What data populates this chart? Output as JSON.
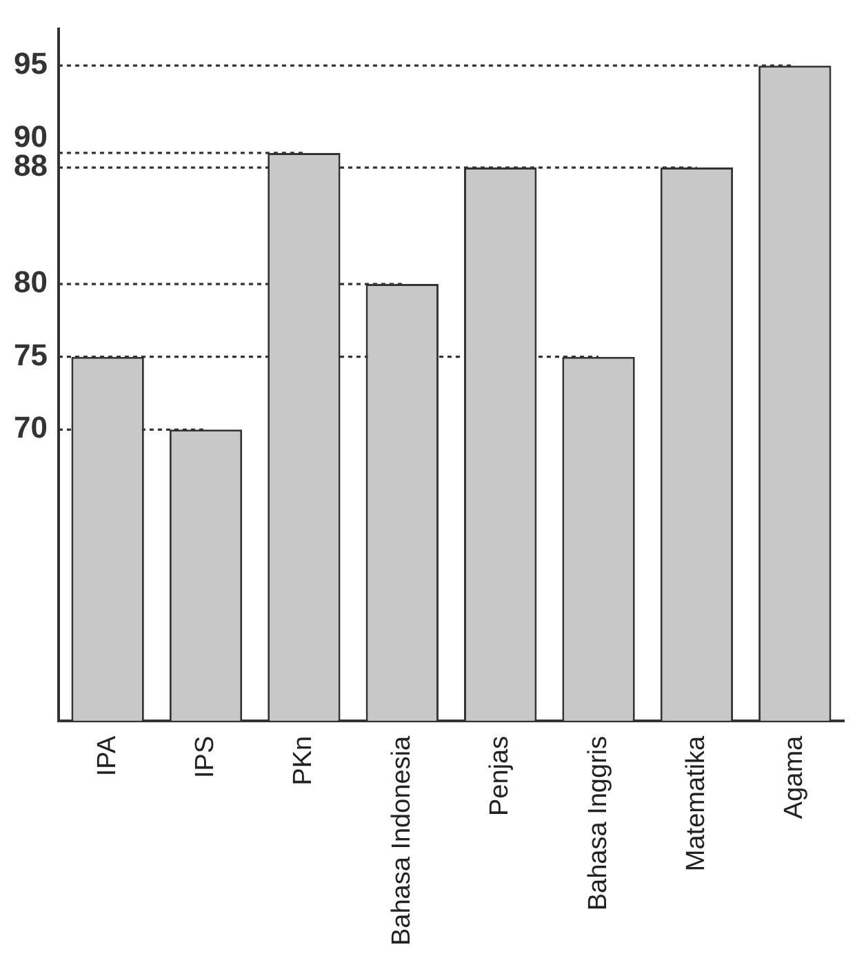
{
  "chart_data": {
    "type": "bar",
    "categories": [
      "IPA",
      "IPS",
      "PKn",
      "Bahasa Indonesia",
      "Penjas",
      "Bahasa Inggris",
      "Matematika",
      "Agama"
    ],
    "values": [
      75,
      70,
      89,
      80,
      88,
      75,
      88,
      95
    ],
    "color": "#c8c8c8",
    "ylim": [
      50,
      97.5
    ],
    "yticks": [
      {
        "value": 70,
        "label": "70"
      },
      {
        "value": 75,
        "label": "75"
      },
      {
        "value": 80,
        "label": "80"
      },
      {
        "value": 88,
        "label": "88"
      },
      {
        "value": 90,
        "label": "90"
      },
      {
        "value": 95,
        "label": "95"
      }
    ],
    "ref_lines": [
      {
        "axis": "y",
        "value": 95,
        "line_style": "dotted"
      },
      {
        "axis": "y",
        "value": 89,
        "line_style": "dotted"
      },
      {
        "axis": "y",
        "value": 88,
        "line_style": "dotted"
      },
      {
        "axis": "y",
        "value": 80,
        "line_style": "dotted"
      },
      {
        "axis": "y",
        "value": 75,
        "line_style": "dotted"
      },
      {
        "axis": "y",
        "value": 70,
        "line_style": "dotted"
      }
    ]
  }
}
